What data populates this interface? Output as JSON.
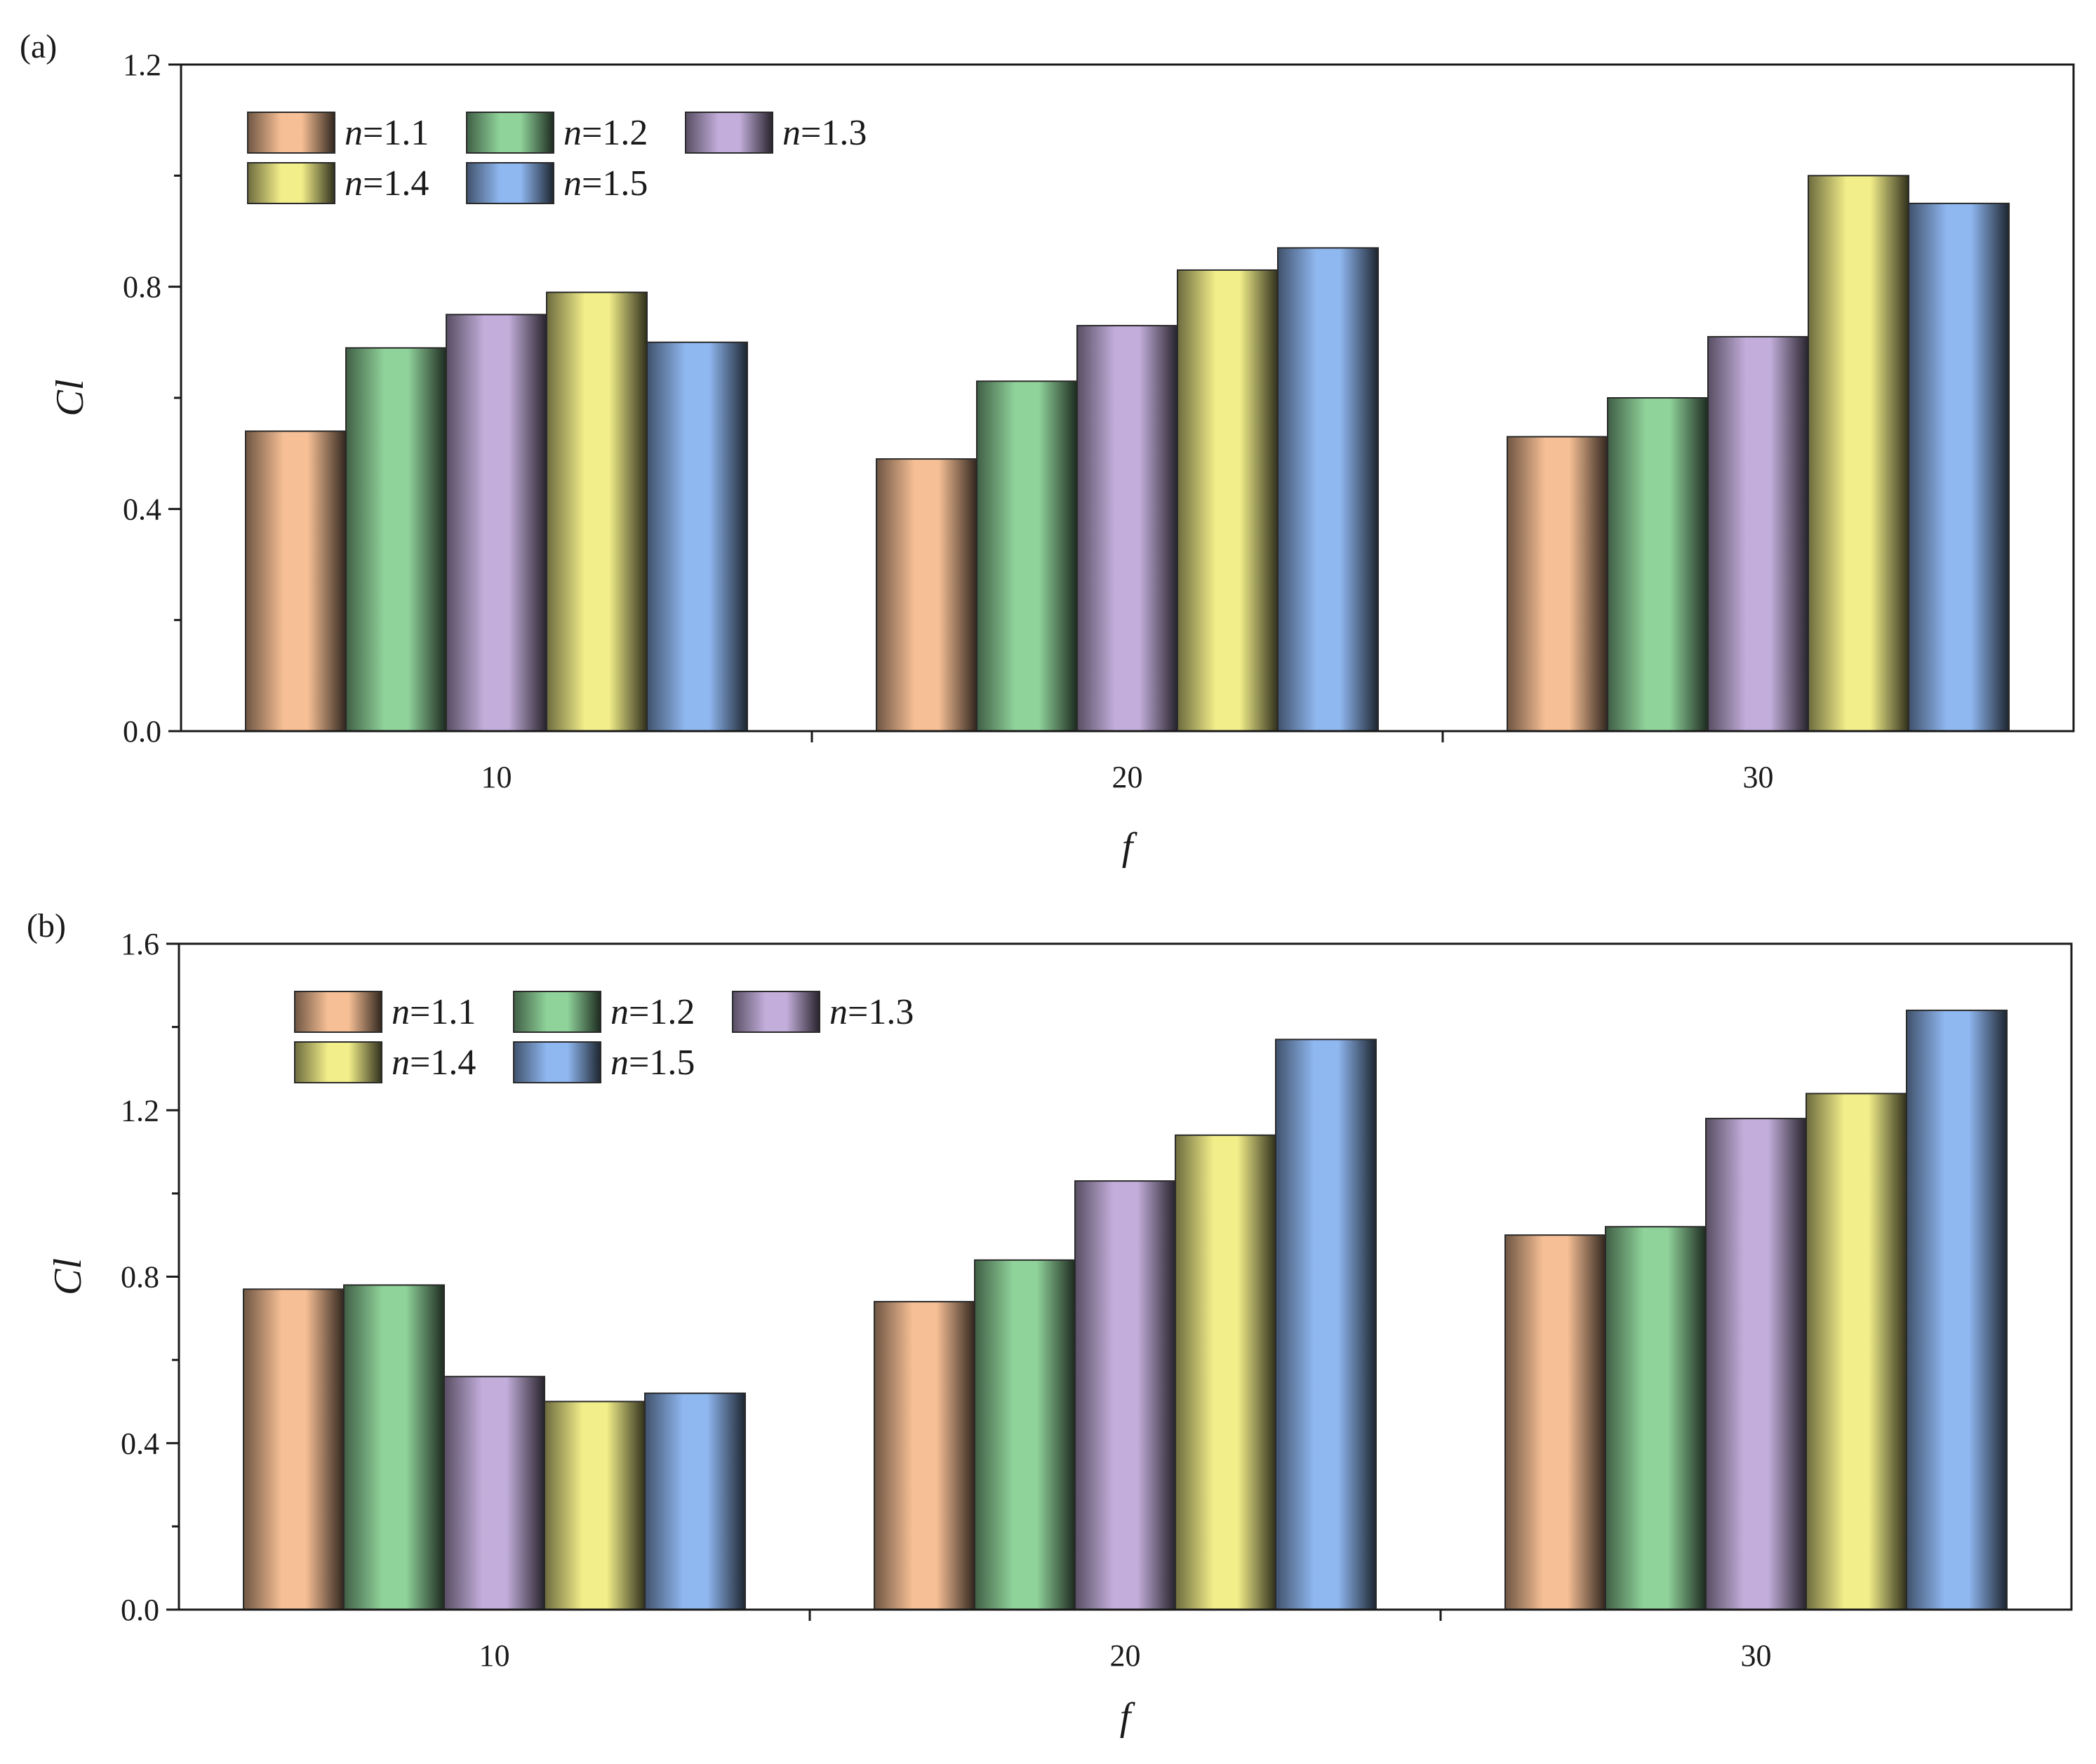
{
  "chart_data": [
    {
      "type": "bar",
      "panel_label": "(a)",
      "categories": [
        "10",
        "20",
        "30"
      ],
      "series": [
        {
          "name": "1.1",
          "values": [
            0.54,
            0.49,
            0.53
          ]
        },
        {
          "name": "1.2",
          "values": [
            0.69,
            0.63,
            0.6
          ]
        },
        {
          "name": "1.3",
          "values": [
            0.75,
            0.73,
            0.71
          ]
        },
        {
          "name": "1.4",
          "values": [
            0.79,
            0.83,
            1.0
          ]
        },
        {
          "name": "1.5",
          "values": [
            0.7,
            0.87,
            0.95
          ]
        }
      ],
      "xlabel": "f",
      "ylabel": "Cl",
      "ylim": [
        0,
        1.2
      ],
      "yticks": [
        "0.0",
        "0.4",
        "0.8",
        "1.2"
      ],
      "legend_placement": "top-left",
      "grid": false
    },
    {
      "type": "bar",
      "panel_label": "(b)",
      "categories": [
        "10",
        "20",
        "30"
      ],
      "series": [
        {
          "name": "1.1",
          "values": [
            0.77,
            0.74,
            0.9
          ]
        },
        {
          "name": "1.2",
          "values": [
            0.78,
            0.84,
            0.92
          ]
        },
        {
          "name": "1.3",
          "values": [
            0.56,
            1.03,
            1.18
          ]
        },
        {
          "name": "1.4",
          "values": [
            0.5,
            1.14,
            1.24
          ]
        },
        {
          "name": "1.5",
          "values": [
            0.52,
            1.37,
            1.44
          ]
        }
      ],
      "xlabel": "f",
      "ylabel": "Cl",
      "ylim": [
        0,
        1.6
      ],
      "yticks": [
        "0.0",
        "0.4",
        "0.8",
        "1.2",
        "1.6"
      ],
      "legend_placement": "top-left",
      "grid": false
    }
  ],
  "legend_prefix": "n",
  "legend_separator": "=",
  "colors": {
    "series": [
      "#f6bf95",
      "#8fd29a",
      "#c3aedb",
      "#f2ee8a",
      "#8fb7f0"
    ],
    "axis": "#1a1a1a"
  }
}
